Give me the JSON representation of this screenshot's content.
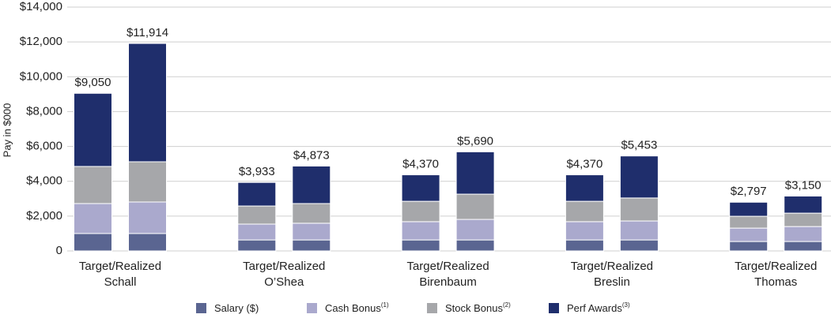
{
  "chart_data": {
    "type": "stacked-bar",
    "y_label": "Pay in $000",
    "ylim": [
      0,
      14000
    ],
    "yticks": [
      0,
      {
        "value": 2000,
        "label": "$2,000"
      },
      {
        "value": 4000,
        "label": "$4,000"
      },
      {
        "value": 6000,
        "label": "$6,000"
      },
      {
        "value": 8000,
        "label": "$8,000"
      },
      {
        "value": 10000,
        "label": "$10,000"
      },
      {
        "value": 12000,
        "label": "$12,000"
      },
      {
        "value": 14000,
        "label": "$14,000"
      }
    ],
    "grid": true,
    "groups": [
      "Schall",
      "O’Shea",
      "Birenbaum",
      "Breslin",
      "Thomas"
    ],
    "group_sublabel": "Target/Realized",
    "series": [
      {
        "name": "Salary ($)",
        "color": "#5a6591",
        "values": [
          1000,
          1000,
          630,
          630,
          630,
          630,
          630,
          630,
          540,
          540
        ]
      },
      {
        "name": "Cash Bonus",
        "note": "(1)",
        "color": "#aaa9cd",
        "values": [
          1720,
          1810,
          910,
          960,
          1050,
          1180,
          1050,
          1090,
          770,
          860
        ]
      },
      {
        "name": "Stock Bonus",
        "note": "(2)",
        "color": "#a6a7aa",
        "values": [
          2130,
          2310,
          1040,
          1130,
          1170,
          1450,
          1170,
          1320,
          680,
          770
        ]
      },
      {
        "name": "Perf Awards",
        "note": "(3)",
        "color": "#1f2e6c",
        "values": [
          4200,
          6794,
          1353,
          2153,
          1520,
          2430,
          1520,
          2413,
          807,
          980
        ]
      }
    ],
    "totals": [
      9050,
      11914,
      3933,
      4873,
      4370,
      5690,
      4370,
      5453,
      2797,
      3150
    ],
    "total_labels": [
      "$9,050",
      "$11,914",
      "$3,933",
      "$4,873",
      "$4,370",
      "$5,690",
      "$4,370",
      "$5,453",
      "$2,797",
      "$3,150"
    ]
  }
}
